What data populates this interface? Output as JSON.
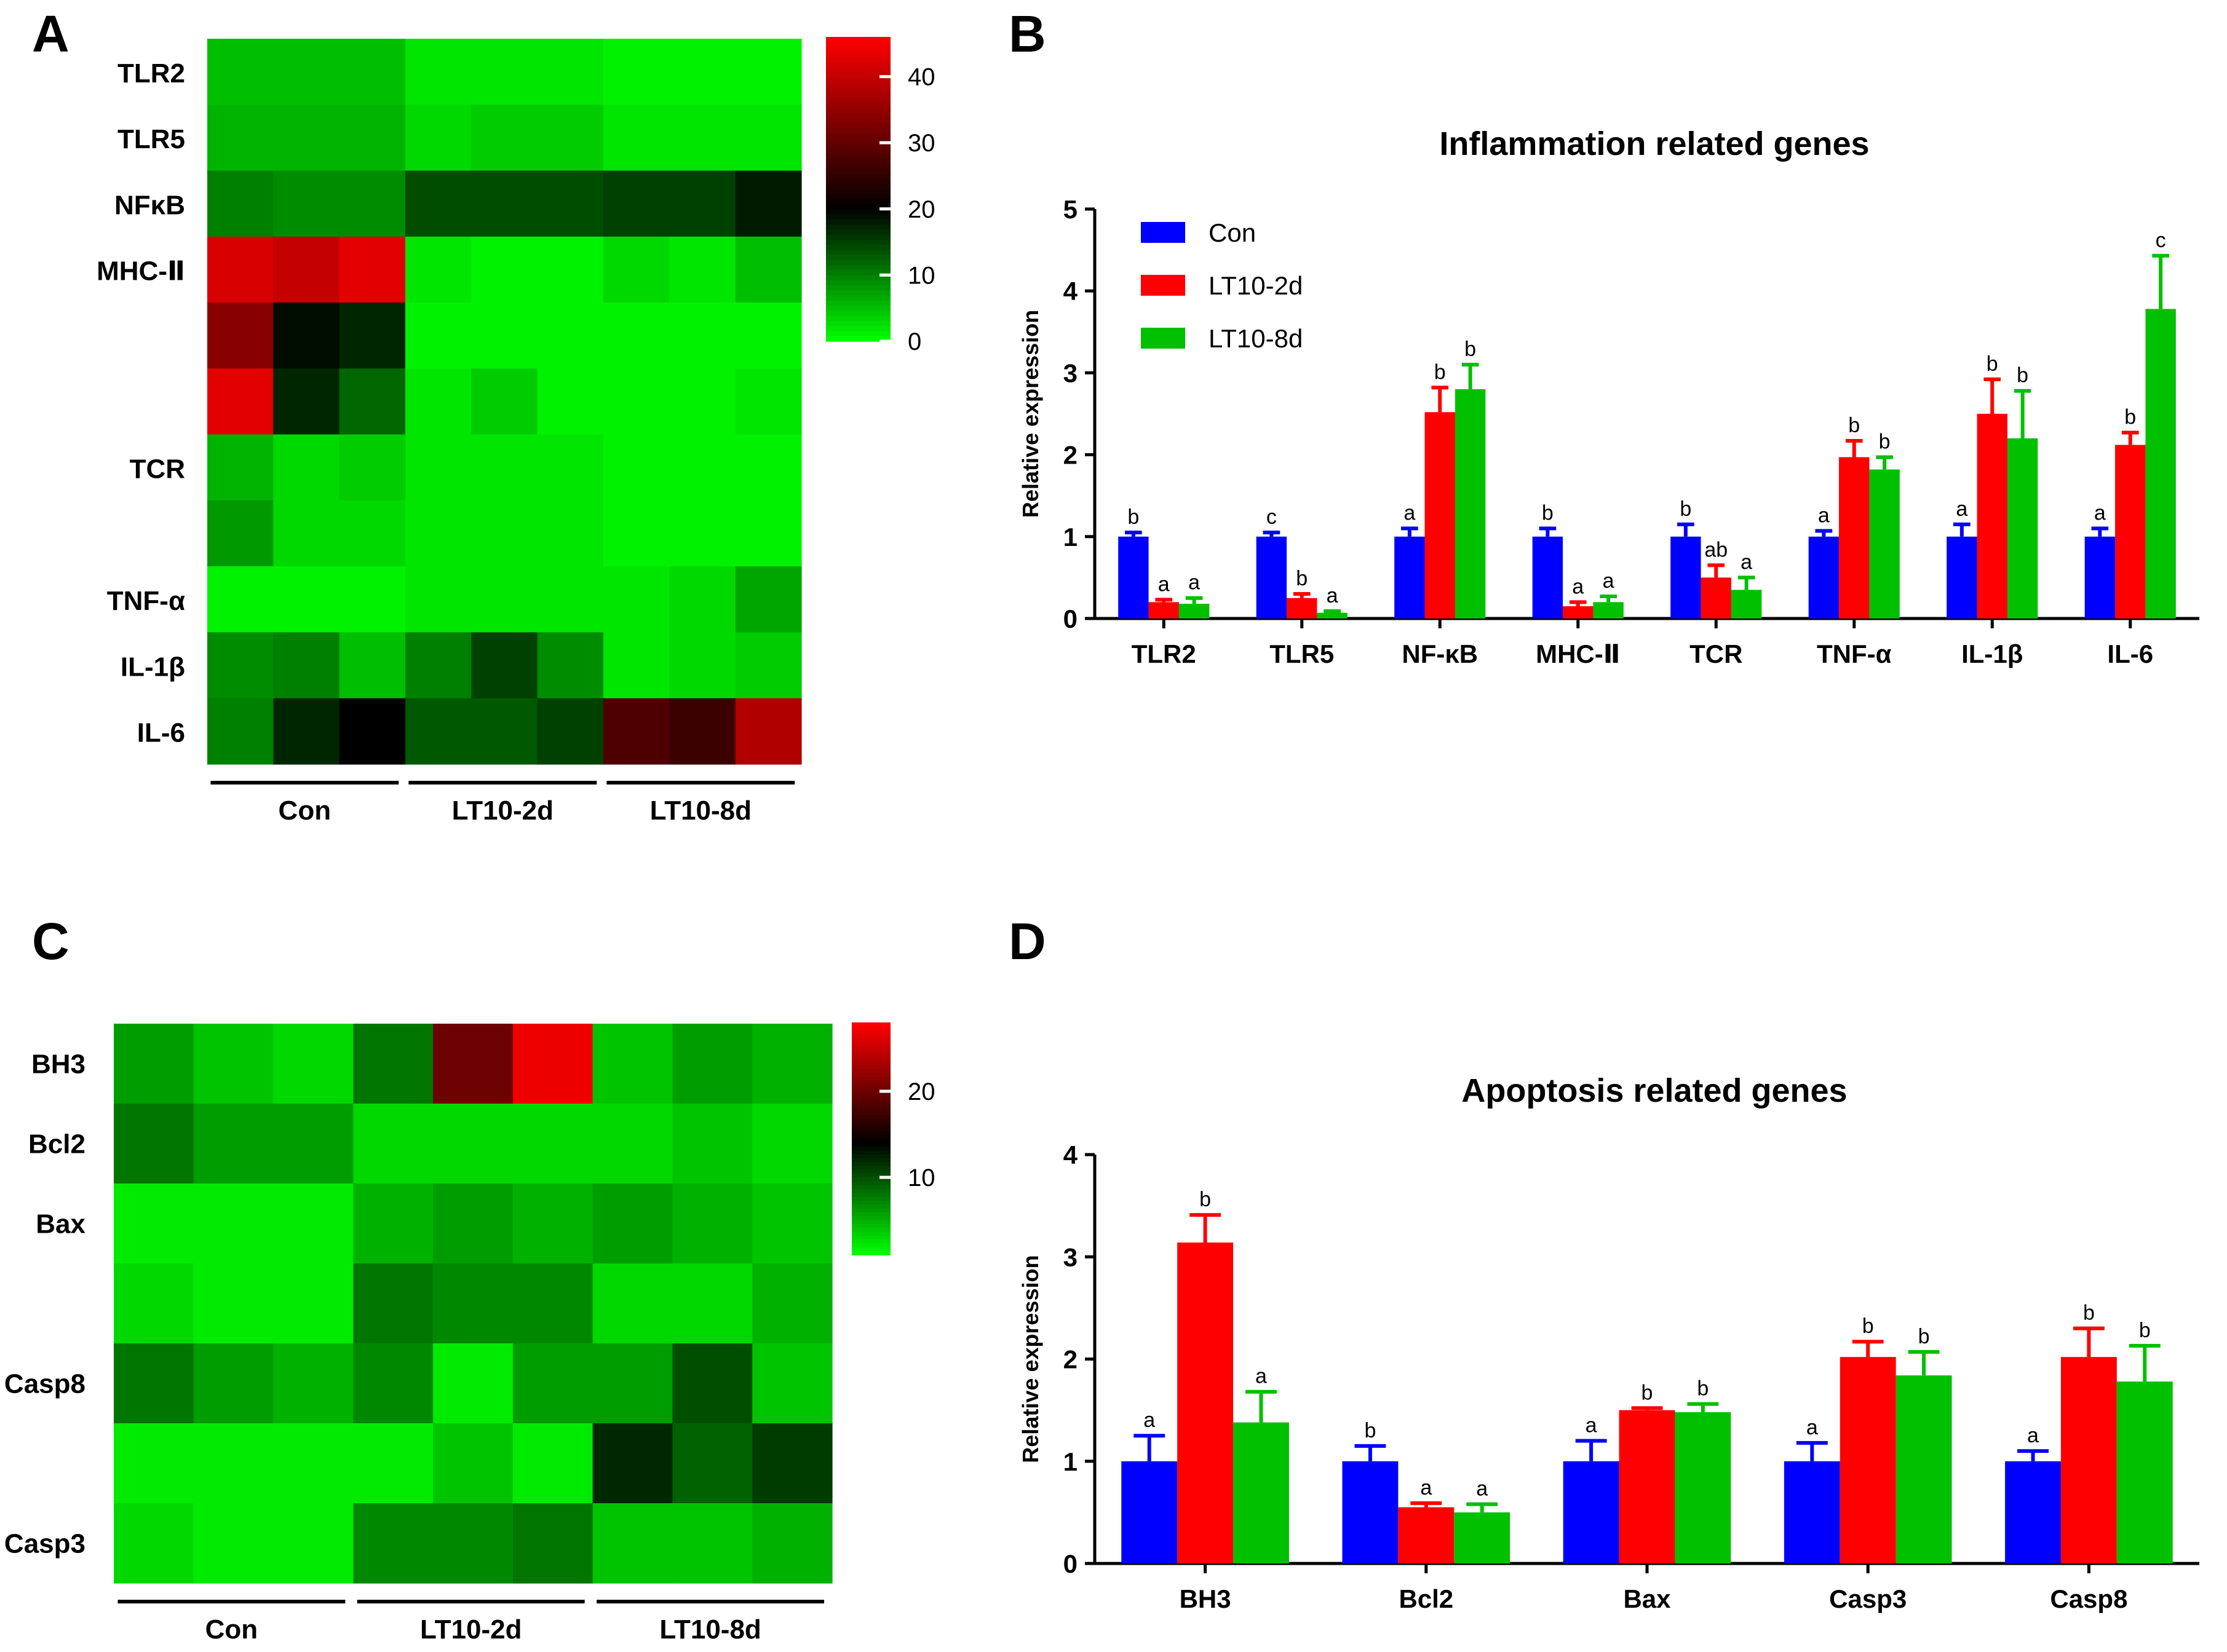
{
  "panels": {
    "A": "A",
    "B": "B",
    "C": "C",
    "D": "D"
  },
  "colors": {
    "con": "#0000ff",
    "lt2d": "#ff0000",
    "lt8d": "#00c000",
    "heat_low": "#00ff00",
    "heat_mid": "#000000",
    "heat_high": "#ff0000"
  },
  "chart_data": [
    {
      "id": "A",
      "type": "heatmap",
      "title": "",
      "columns_per_group": 3,
      "groups": [
        "Con",
        "LT10-2d",
        "LT10-8d"
      ],
      "row_labels": [
        "TLR2",
        "TLR5",
        "NFκB",
        "MHC-Ⅱ",
        "",
        "",
        "TCR",
        "",
        "TNF-α",
        "IL-1β",
        "IL-6"
      ],
      "scale": {
        "min": 0,
        "mid": 20,
        "max": 46,
        "ticks": [
          0,
          10,
          20,
          30,
          40
        ]
      },
      "values": [
        [
          5,
          5,
          5,
          2,
          2,
          2,
          1,
          1,
          1
        ],
        [
          6,
          6,
          6,
          3,
          4,
          4,
          2,
          2,
          2
        ],
        [
          10,
          9,
          9,
          14,
          14,
          14,
          15,
          15,
          18
        ],
        [
          42,
          40,
          43,
          2,
          1,
          1,
          3,
          2,
          5
        ],
        [
          34,
          19,
          17,
          1,
          1,
          1,
          1,
          1,
          1
        ],
        [
          43,
          17,
          12,
          2,
          4,
          1,
          1,
          1,
          2
        ],
        [
          6,
          3,
          4,
          2,
          2,
          2,
          1,
          1,
          1
        ],
        [
          8,
          3,
          3,
          2,
          2,
          2,
          1,
          1,
          1
        ],
        [
          1,
          1,
          1,
          2,
          2,
          2,
          2,
          3,
          7
        ],
        [
          9,
          10,
          5,
          10,
          15,
          9,
          2,
          3,
          4
        ],
        [
          10,
          17,
          20,
          13,
          13,
          15,
          28,
          26,
          38
        ]
      ]
    },
    {
      "id": "B",
      "type": "bar",
      "title": "Inflammation related genes",
      "xlabel": "",
      "ylabel": "Relative expression",
      "ylim": [
        0,
        5
      ],
      "yticks": [
        0,
        1,
        2,
        3,
        4,
        5
      ],
      "categories": [
        "TLR2",
        "TLR5",
        "NF-κB",
        "MHC-Ⅱ",
        "TCR",
        "TNF-α",
        "IL-1β",
        "IL-6"
      ],
      "series": [
        {
          "name": "Con",
          "values": [
            1,
            1,
            1,
            1,
            1,
            1,
            1,
            1
          ],
          "errors": [
            0.05,
            0.05,
            0.1,
            0.1,
            0.15,
            0.07,
            0.15,
            0.1
          ],
          "labels": [
            "b",
            "c",
            "a",
            "b",
            "b",
            "a",
            "a",
            "a"
          ]
        },
        {
          "name": "LT10-2d",
          "values": [
            0.2,
            0.25,
            2.52,
            0.15,
            0.5,
            1.97,
            2.5,
            2.12
          ],
          "errors": [
            0.03,
            0.05,
            0.3,
            0.05,
            0.15,
            0.2,
            0.42,
            0.15
          ],
          "labels": [
            "a",
            "b",
            "b",
            "a",
            "ab",
            "b",
            "b",
            "b"
          ]
        },
        {
          "name": "LT10-8d",
          "values": [
            0.18,
            0.07,
            2.8,
            0.2,
            0.35,
            1.82,
            2.2,
            3.78
          ],
          "errors": [
            0.07,
            0.02,
            0.3,
            0.07,
            0.15,
            0.15,
            0.58,
            0.65
          ],
          "labels": [
            "a",
            "a",
            "b",
            "a",
            "a",
            "b",
            "b",
            "c"
          ]
        }
      ],
      "legend": "top-left"
    },
    {
      "id": "C",
      "type": "heatmap",
      "title": "",
      "columns_per_group": 3,
      "groups": [
        "Con",
        "LT10-2d",
        "LT10-8d"
      ],
      "row_labels": [
        "BH3",
        "Bcl2",
        "Bax",
        "",
        "Casp8",
        "",
        "Casp3"
      ],
      "scale": {
        "min": 1,
        "mid": 14,
        "max": 28,
        "ticks": [
          10,
          20
        ]
      },
      "values": [
        [
          6,
          4,
          3,
          8,
          20,
          27,
          4,
          6,
          5
        ],
        [
          8,
          6,
          6,
          3,
          3,
          3,
          3,
          4,
          3
        ],
        [
          2,
          2,
          2,
          5,
          6,
          5,
          6,
          5,
          4
        ],
        [
          3,
          2,
          2,
          8,
          7,
          7,
          3,
          3,
          5
        ],
        [
          8,
          6,
          5,
          7,
          2,
          6,
          6,
          10,
          4
        ],
        [
          2,
          2,
          2,
          2,
          4,
          2,
          12,
          9,
          11
        ],
        [
          3,
          2,
          2,
          7,
          7,
          8,
          4,
          4,
          5
        ]
      ]
    },
    {
      "id": "D",
      "type": "bar",
      "title": "Apoptosis related genes",
      "xlabel": "",
      "ylabel": "Relative expression",
      "ylim": [
        0,
        4
      ],
      "yticks": [
        0,
        1,
        2,
        3,
        4
      ],
      "categories": [
        "BH3",
        "Bcl2",
        "Bax",
        "Casp3",
        "Casp8"
      ],
      "series": [
        {
          "name": "Con",
          "values": [
            1,
            1,
            1,
            1,
            1
          ],
          "errors": [
            0.25,
            0.15,
            0.2,
            0.18,
            0.1
          ],
          "labels": [
            "a",
            "b",
            "a",
            "a",
            "a"
          ]
        },
        {
          "name": "LT10-2d",
          "values": [
            3.14,
            0.55,
            1.5,
            2.02,
            2.02
          ],
          "errors": [
            0.27,
            0.04,
            0.02,
            0.15,
            0.28
          ],
          "labels": [
            "b",
            "a",
            "b",
            "b",
            "b"
          ]
        },
        {
          "name": "LT10-8d",
          "values": [
            1.38,
            0.5,
            1.48,
            1.84,
            1.78
          ],
          "errors": [
            0.3,
            0.08,
            0.08,
            0.23,
            0.35
          ],
          "labels": [
            "a",
            "a",
            "b",
            "b",
            "b"
          ]
        }
      ]
    }
  ]
}
